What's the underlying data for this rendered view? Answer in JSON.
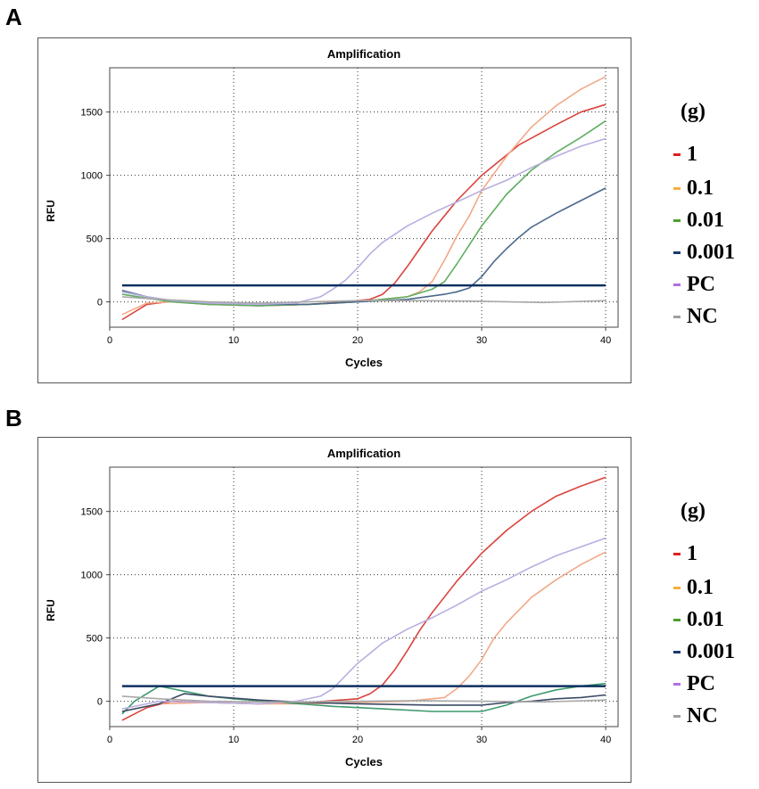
{
  "figure": {
    "legend": {
      "title": "(g)",
      "items": [
        {
          "label": "1",
          "color": "#e02020"
        },
        {
          "label": "0.1",
          "color": "#f5b040"
        },
        {
          "label": "0.01",
          "color": "#4ca030"
        },
        {
          "label": "0.001",
          "color": "#1a3a70"
        },
        {
          "label": "PC",
          "color": "#b070e0"
        },
        {
          "label": "NC",
          "color": "#a0a0a0"
        }
      ]
    }
  },
  "chart_data": [
    {
      "panel": "A",
      "type": "line",
      "title": "Amplification",
      "xlabel": "Cycles",
      "ylabel": "RFU",
      "xlim": [
        0,
        41
      ],
      "ylim": [
        -200,
        1850
      ],
      "xticks": [
        0,
        10,
        20,
        30,
        40
      ],
      "yticks": [
        0,
        500,
        1000,
        1500
      ],
      "grid": true,
      "threshold": 130,
      "series": [
        {
          "name": "1",
          "color": "#d9443d",
          "x": [
            1,
            3,
            5,
            8,
            12,
            16,
            19,
            21,
            22,
            23,
            24,
            25,
            26,
            28,
            30,
            33,
            36,
            38,
            40
          ],
          "y": [
            -140,
            -20,
            5,
            -20,
            -30,
            -20,
            0,
            20,
            60,
            150,
            280,
            420,
            560,
            800,
            1000,
            1240,
            1400,
            1500,
            1560
          ]
        },
        {
          "name": "0.1",
          "color": "#f2a987",
          "x": [
            1,
            3,
            5,
            8,
            12,
            16,
            20,
            24,
            25,
            26,
            27,
            28,
            29,
            30,
            32,
            34,
            36,
            38,
            40
          ],
          "y": [
            -100,
            -10,
            0,
            -20,
            -30,
            -20,
            0,
            40,
            80,
            160,
            330,
            520,
            680,
            880,
            1150,
            1380,
            1550,
            1680,
            1780
          ]
        },
        {
          "name": "0.01",
          "color": "#5fae5f",
          "x": [
            1,
            3,
            5,
            8,
            12,
            16,
            20,
            24,
            26,
            27,
            28,
            29,
            30,
            32,
            34,
            36,
            38,
            40
          ],
          "y": [
            60,
            30,
            0,
            -20,
            -30,
            -20,
            0,
            40,
            100,
            160,
            300,
            450,
            600,
            850,
            1040,
            1180,
            1300,
            1430
          ]
        },
        {
          "name": "0.001",
          "color": "#4a6a8c",
          "x": [
            1,
            3,
            5,
            8,
            12,
            16,
            20,
            24,
            27,
            28,
            29,
            30,
            31,
            32,
            33,
            34,
            36,
            38,
            40
          ],
          "y": [
            90,
            40,
            10,
            -10,
            -20,
            -20,
            0,
            20,
            60,
            80,
            110,
            200,
            320,
            420,
            510,
            590,
            700,
            800,
            900
          ]
        },
        {
          "name": "PC",
          "color": "#b8aee0",
          "x": [
            1,
            3,
            5,
            8,
            12,
            15,
            17,
            18,
            19,
            20,
            21,
            22,
            24,
            26,
            28,
            30,
            32,
            34,
            36,
            38,
            40
          ],
          "y": [
            80,
            40,
            10,
            -10,
            -20,
            -10,
            40,
            100,
            170,
            270,
            380,
            470,
            600,
            700,
            790,
            880,
            960,
            1060,
            1150,
            1230,
            1290
          ]
        },
        {
          "name": "NC",
          "color": "#a9a9a9",
          "x": [
            1,
            4,
            8,
            12,
            16,
            20,
            25,
            30,
            35,
            40
          ],
          "y": [
            40,
            20,
            0,
            -10,
            0,
            10,
            10,
            5,
            -5,
            10
          ]
        }
      ]
    },
    {
      "panel": "B",
      "type": "line",
      "title": "Amplification",
      "xlabel": "Cycles",
      "ylabel": "RFU",
      "xlim": [
        0,
        41
      ],
      "ylim": [
        -200,
        1850
      ],
      "xticks": [
        0,
        10,
        20,
        30,
        40
      ],
      "yticks": [
        0,
        500,
        1000,
        1500
      ],
      "grid": true,
      "threshold": 120,
      "series": [
        {
          "name": "1",
          "color": "#d9443d",
          "x": [
            1,
            3,
            5,
            8,
            12,
            16,
            20,
            21,
            22,
            23,
            24,
            25,
            26,
            28,
            30,
            32,
            34,
            36,
            38,
            40
          ],
          "y": [
            -150,
            -50,
            0,
            -10,
            -20,
            -10,
            20,
            60,
            130,
            250,
            400,
            560,
            700,
            950,
            1170,
            1350,
            1500,
            1620,
            1700,
            1770
          ]
        },
        {
          "name": "0.1",
          "color": "#f2a987",
          "x": [
            1,
            4,
            8,
            12,
            16,
            20,
            24,
            27,
            28,
            29,
            30,
            31,
            32,
            34,
            36,
            38,
            40
          ],
          "y": [
            -80,
            -20,
            -10,
            -20,
            -20,
            -10,
            0,
            30,
            100,
            200,
            330,
            500,
            620,
            820,
            960,
            1080,
            1180
          ]
        },
        {
          "name": "0.01",
          "color": "#3d9a6e",
          "x": [
            1,
            2,
            4,
            6,
            8,
            10,
            14,
            18,
            22,
            26,
            30,
            32,
            34,
            36,
            38,
            40
          ],
          "y": [
            -100,
            0,
            120,
            80,
            40,
            20,
            -10,
            -40,
            -60,
            -80,
            -80,
            -30,
            40,
            90,
            120,
            140
          ]
        },
        {
          "name": "0.001",
          "color": "#3a4a66",
          "x": [
            1,
            2,
            4,
            6,
            8,
            12,
            16,
            20,
            26,
            30,
            32,
            34,
            36,
            38,
            40
          ],
          "y": [
            -80,
            -60,
            -20,
            60,
            40,
            10,
            -10,
            -20,
            -30,
            -30,
            -10,
            0,
            20,
            30,
            50
          ]
        },
        {
          "name": "PC",
          "color": "#b8aee0",
          "x": [
            1,
            4,
            8,
            12,
            15,
            17,
            18,
            19,
            20,
            21,
            22,
            24,
            26,
            28,
            30,
            32,
            34,
            36,
            38,
            40
          ],
          "y": [
            -60,
            0,
            -10,
            -20,
            0,
            40,
            100,
            200,
            300,
            380,
            460,
            570,
            660,
            760,
            870,
            960,
            1060,
            1150,
            1220,
            1290
          ]
        },
        {
          "name": "NC",
          "color": "#a9a9a9",
          "x": [
            1,
            4,
            8,
            12,
            16,
            20,
            25,
            30,
            35,
            40
          ],
          "y": [
            40,
            20,
            0,
            -5,
            -5,
            0,
            5,
            0,
            -5,
            10
          ]
        }
      ]
    }
  ]
}
